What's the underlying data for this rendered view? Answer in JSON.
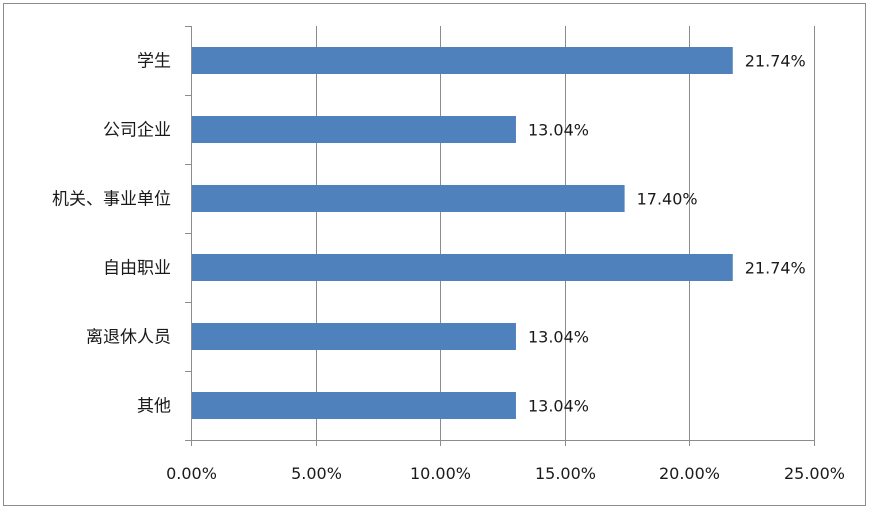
{
  "chart_data": {
    "type": "bar",
    "orientation": "horizontal",
    "categories": [
      "学生",
      "公司企业",
      "机关、事业单位",
      "自由职业",
      "离退休人员",
      "其他"
    ],
    "values": [
      21.74,
      13.04,
      17.4,
      21.74,
      13.04,
      13.04
    ],
    "value_labels": [
      "21.74%",
      "13.04%",
      "17.40%",
      "21.74%",
      "13.04%",
      "13.04%"
    ],
    "x_ticks": [
      "0.00%",
      "5.00%",
      "10.00%",
      "15.00%",
      "20.00%",
      "25.00%"
    ],
    "xlim": [
      0,
      25
    ],
    "title": "",
    "xlabel": "",
    "ylabel": "",
    "grid": "vertical",
    "legend": "none",
    "bar_color": "#4f81bd"
  }
}
